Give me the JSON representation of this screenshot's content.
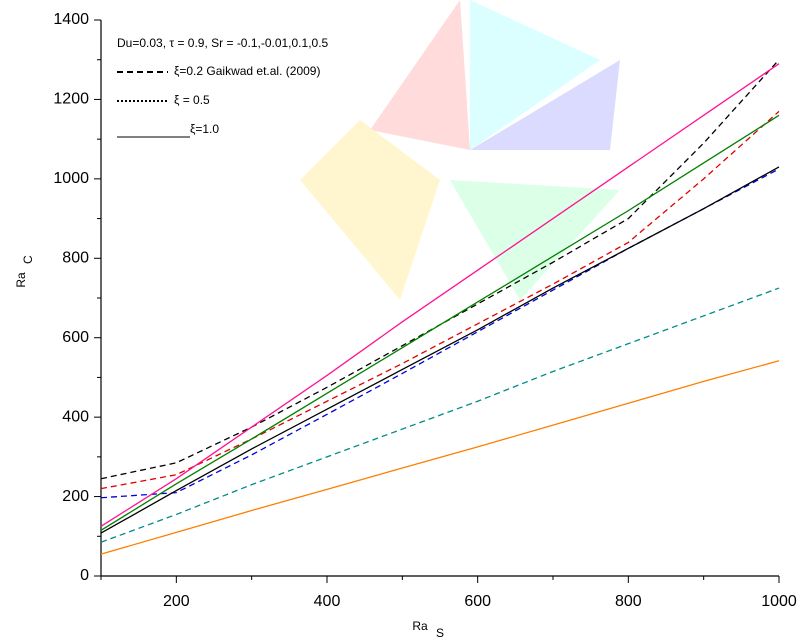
{
  "chart_data": {
    "type": "line",
    "annotation": "Du=0.03, τ = 0.9, Sr = -0.1,-0.01,0.1,0.5",
    "legend": [
      {
        "label": "ξ=0.2  Gaikwad et.al. (2009)",
        "dash": "dashed"
      },
      {
        "label": "ξ = 0.5",
        "dash": "dotted"
      },
      {
        "label": "ξ=1.0",
        "dash": "solid"
      }
    ],
    "x_label": "Ra",
    "x_label_sub": "S",
    "y_label": "Ra",
    "y_label_sub": "C",
    "x": [
      100,
      200,
      300,
      400,
      500,
      600,
      700,
      800,
      900,
      1000
    ],
    "series": [
      {
        "color": "#000000",
        "dash": "dashed",
        "values": [
          245,
          285,
          375,
          475,
          580,
          685,
          790,
          900,
          1090,
          1300
        ]
      },
      {
        "color": "#e00000",
        "dash": "dashed",
        "values": [
          220,
          255,
          345,
          440,
          535,
          635,
          735,
          840,
          1000,
          1170
        ]
      },
      {
        "color": "#0000e0",
        "dash": "dashed",
        "values": [
          197,
          210,
          305,
          407,
          510,
          615,
          720,
          825,
          925,
          1025
        ]
      },
      {
        "color": "#000000",
        "dash": "solid",
        "values": [
          108,
          215,
          320,
          420,
          520,
          620,
          725,
          825,
          925,
          1030
        ]
      },
      {
        "color": "#008000",
        "dash": "solid",
        "values": [
          115,
          232,
          345,
          460,
          575,
          690,
          805,
          920,
          1040,
          1160
        ]
      },
      {
        "color": "#ff1493",
        "dash": "solid",
        "values": [
          125,
          245,
          375,
          505,
          640,
          770,
          900,
          1030,
          1160,
          1290
        ]
      },
      {
        "color": "#008b8b",
        "dash": "dashed",
        "values": [
          85,
          155,
          230,
          300,
          370,
          440,
          515,
          585,
          655,
          725
        ]
      },
      {
        "color": "#ff7f00",
        "dash": "solid",
        "values": [
          55,
          110,
          165,
          218,
          272,
          325,
          380,
          435,
          490,
          542
        ]
      }
    ],
    "xlim": [
      100,
      1000
    ],
    "xticks": [
      200,
      400,
      600,
      800,
      1000
    ],
    "xminorticks": [
      100,
      300,
      500,
      700,
      900
    ],
    "ylim": [
      0,
      1400
    ],
    "yticks": [
      0,
      200,
      400,
      600,
      800,
      1000,
      1200,
      1400
    ],
    "yminorticks": [
      100,
      300,
      500,
      700,
      900,
      1100,
      1300
    ]
  }
}
